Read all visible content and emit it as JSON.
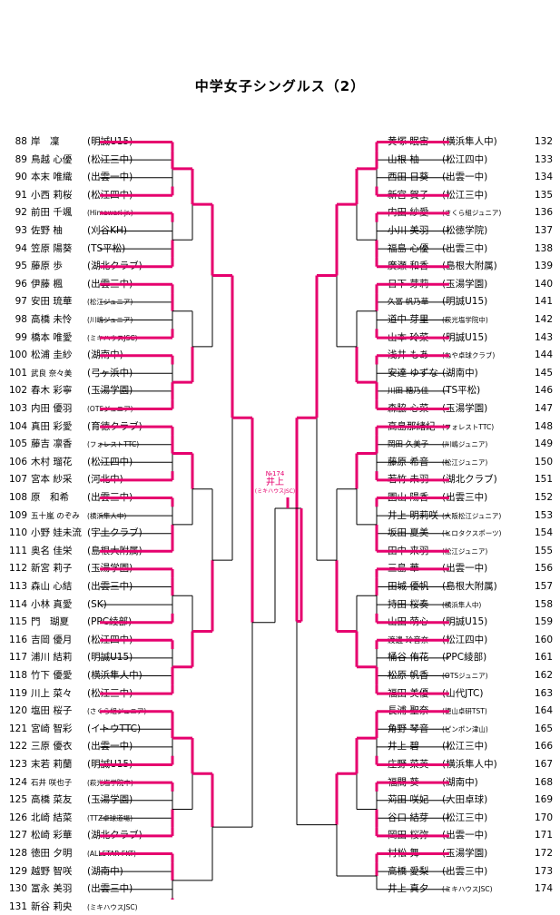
{
  "title": "中学女子シングルス（2）",
  "champion": {
    "label": "№174",
    "name": "井上",
    "club": "(ミキハウスJSC)"
  },
  "left": [
    {
      "no": "88",
      "name": "岸　凜",
      "club": "(明誠U15)"
    },
    {
      "no": "89",
      "name": "鳥越 心優",
      "club": "(松江三中)"
    },
    {
      "no": "90",
      "name": "本末 唯織",
      "club": "(出雲一中)"
    },
    {
      "no": "91",
      "name": "小西 莉桜",
      "club": "(松江四中)"
    },
    {
      "no": "92",
      "name": "前田 千颯",
      "club": "(Himawari jr.)",
      "small": true
    },
    {
      "no": "93",
      "name": "佐野 柚",
      "club": "(刈谷KH)"
    },
    {
      "no": "94",
      "name": "笠原 陽葵",
      "club": "(TS平松)"
    },
    {
      "no": "95",
      "name": "藤原 歩",
      "club": "(湖北クラブ)"
    },
    {
      "no": "96",
      "name": "伊藤 楓",
      "club": "(出雲三中)"
    },
    {
      "no": "97",
      "name": "安田 琉華",
      "club": "(松江ジュニア)",
      "small": true
    },
    {
      "no": "98",
      "name": "高橋 未怜",
      "club": "(川嶋ジュニア)",
      "small": true
    },
    {
      "no": "99",
      "name": "橋本 唯愛",
      "club": "(ミキハウスJSC)",
      "small": true
    },
    {
      "no": "100",
      "name": "松浦 圭紗",
      "club": "(湖南中)"
    },
    {
      "no": "101",
      "name": "武良 奈々美",
      "club": "(弓ヶ浜中)",
      "nameSmall": true
    },
    {
      "no": "102",
      "name": "春木 彩寧",
      "club": "(玉湯学園)"
    },
    {
      "no": "103",
      "name": "内田 優羽",
      "club": "(OTSジュニア)",
      "small": true
    },
    {
      "no": "104",
      "name": "真田 彩愛",
      "club": "(育徳クラブ)"
    },
    {
      "no": "105",
      "name": "藤吉 凛香",
      "club": "(フォレストTTC)",
      "small": true
    },
    {
      "no": "106",
      "name": "木村 瑠花",
      "club": "(松江四中)"
    },
    {
      "no": "107",
      "name": "宮本 紗采",
      "club": "(河北中)"
    },
    {
      "no": "108",
      "name": "原　和希",
      "club": "(出雲三中)"
    },
    {
      "no": "109",
      "name": "五十嵐 のぞみ",
      "club": "(横浜隼人中)",
      "nameSmall": true,
      "small": true
    },
    {
      "no": "110",
      "name": "小野 娃未流",
      "club": "(宇土クラブ)"
    },
    {
      "no": "111",
      "name": "奥名 佳栄",
      "club": "(島根大附属)"
    },
    {
      "no": "112",
      "name": "新宮 莉子",
      "club": "(玉湯学園)"
    },
    {
      "no": "113",
      "name": "森山 心結",
      "club": "(出雲三中)"
    },
    {
      "no": "114",
      "name": "小林 真愛",
      "club": "(SK)"
    },
    {
      "no": "115",
      "name": "門　瑚夏",
      "club": "(PPC綾部)"
    },
    {
      "no": "116",
      "name": "吉岡 優月",
      "club": "(松江四中)"
    },
    {
      "no": "117",
      "name": "浦川 結莉",
      "club": "(明誠U15)"
    },
    {
      "no": "118",
      "name": "竹下 優愛",
      "club": "(横浜隼人中)"
    },
    {
      "no": "119",
      "name": "川上 菜々",
      "club": "(松江三中)"
    },
    {
      "no": "120",
      "name": "塩田 桜子",
      "club": "(さくら組ジュニア)",
      "small": true
    },
    {
      "no": "121",
      "name": "宮崎 智彩",
      "club": "(イトウTTC)"
    },
    {
      "no": "122",
      "name": "三原 優衣",
      "club": "(出雲一中)"
    },
    {
      "no": "123",
      "name": "末若 莉蘭",
      "club": "(明誠U15)"
    },
    {
      "no": "124",
      "name": "石井 咲也子",
      "club": "(萩光塩学院中)",
      "nameSmall": true,
      "small": true
    },
    {
      "no": "125",
      "name": "高橋 菜友",
      "club": "(玉湯学園)"
    },
    {
      "no": "126",
      "name": "北崎 結菜",
      "club": "(TTZ卓球道場)",
      "small": true
    },
    {
      "no": "127",
      "name": "松崎 彩華",
      "club": "(湖北クラブ)"
    },
    {
      "no": "128",
      "name": "徳田 夕明",
      "club": "(ALLSTAR-FKT)",
      "small": true
    },
    {
      "no": "129",
      "name": "越野 智咲",
      "club": "(湖南中)"
    },
    {
      "no": "130",
      "name": "冨永 美羽",
      "club": "(出雲三中)"
    },
    {
      "no": "131",
      "name": "新谷 莉央",
      "club": "(ミキハウスJSC)",
      "small": true
    }
  ],
  "right": [
    {
      "no": "132",
      "name": "黄塚 眠宙",
      "club": "(横浜隼人中)"
    },
    {
      "no": "133",
      "name": "山根 柚",
      "club": "(松江四中)"
    },
    {
      "no": "134",
      "name": "西田 日葵",
      "club": "(出雲一中)"
    },
    {
      "no": "135",
      "name": "新宮 賀子",
      "club": "(松江三中)"
    },
    {
      "no": "136",
      "name": "内田 紗愛",
      "club": "(さくら組ジュニア)",
      "small": true
    },
    {
      "no": "137",
      "name": "小川 美羽",
      "club": "(松徳学院)"
    },
    {
      "no": "138",
      "name": "福島 心優",
      "club": "(出雲三中)"
    },
    {
      "no": "139",
      "name": "廣瀬 和香",
      "club": "(島根大附属)"
    },
    {
      "no": "140",
      "name": "日下 芽莉",
      "club": "(玉湯学園)"
    },
    {
      "no": "141",
      "name": "久冨 帆乃華",
      "club": "(明誠U15)",
      "nameSmall": true
    },
    {
      "no": "142",
      "name": "道中 芽里",
      "club": "(萩光塩学院中)",
      "small": true
    },
    {
      "no": "143",
      "name": "山本 玲菜",
      "club": "(明誠U15)"
    },
    {
      "no": "144",
      "name": "浅井 もあ",
      "club": "(ねや卓球クラブ)",
      "small": true
    },
    {
      "no": "145",
      "name": "安達 ゆずな",
      "club": "(湖南中)"
    },
    {
      "no": "146",
      "name": "川田 穂乃佳",
      "club": "(TS平松)",
      "nameSmall": true
    },
    {
      "no": "147",
      "name": "森脇 心菜",
      "club": "(玉湯学園)"
    },
    {
      "no": "148",
      "name": "高島那緒紀",
      "club": "(フォレストTTC)",
      "small": true
    },
    {
      "no": "149",
      "name": "岡田 久美子",
      "club": "(川嶋ジュニア)",
      "nameSmall": true,
      "small": true
    },
    {
      "no": "150",
      "name": "藤原 希音",
      "club": "(松江ジュニア)",
      "small": true
    },
    {
      "no": "151",
      "name": "若竹 未羽",
      "club": "(湖北クラブ)"
    },
    {
      "no": "152",
      "name": "園山 陽香",
      "club": "(出雲三中)"
    },
    {
      "no": "153",
      "name": "井上 明莉咲",
      "club": "(大阪松江ジュニア)",
      "small": true
    },
    {
      "no": "154",
      "name": "坂田 夏美",
      "club": "(ヒロタクスポーツ)",
      "small": true
    },
    {
      "no": "155",
      "name": "田中 来羽",
      "club": "(松江ジュニア)",
      "small": true
    },
    {
      "no": "156",
      "name": "三島 華",
      "club": "(出雲一中)"
    },
    {
      "no": "157",
      "name": "田城 優帆",
      "club": "(島根大附属)"
    },
    {
      "no": "158",
      "name": "持田 桜奏",
      "club": "(横浜隼人中)",
      "small": true
    },
    {
      "no": "159",
      "name": "山田 萌心",
      "club": "(明誠U15)"
    },
    {
      "no": "160",
      "name": "渡邊 玲音奈",
      "club": "(松江四中)",
      "nameSmall": true
    },
    {
      "no": "161",
      "name": "桶谷 侑花",
      "club": "(PPC綾部)"
    },
    {
      "no": "162",
      "name": "松原 帆香",
      "club": "(OTSジュニア)",
      "small": true
    },
    {
      "no": "163",
      "name": "福田 美優",
      "club": "(山代JTC)"
    },
    {
      "no": "164",
      "name": "長浦 聖奈",
      "club": "(徳山卓研TST)",
      "small": true
    },
    {
      "no": "165",
      "name": "角野 琴音",
      "club": "(ピンポン津山)",
      "small": true
    },
    {
      "no": "166",
      "name": "井上 碧",
      "club": "(松江三中)"
    },
    {
      "no": "167",
      "name": "庄野 菜英",
      "club": "(横浜隼人中)"
    },
    {
      "no": "168",
      "name": "福間 葵",
      "club": "(湖南中)"
    },
    {
      "no": "169",
      "name": "苅田 咲妃",
      "club": "(大田卓球)"
    },
    {
      "no": "170",
      "name": "谷口 結芽",
      "club": "(松江三中)"
    },
    {
      "no": "171",
      "name": "岡田 桜弥",
      "club": "(出雲一中)"
    },
    {
      "no": "172",
      "name": "村松 舞",
      "club": "(玉湯学園)"
    },
    {
      "no": "173",
      "name": "高橋 愛梨",
      "club": "(出雲三中)"
    },
    {
      "no": "174",
      "name": "井上 真夕",
      "club": "(ミキハウスJSC)",
      "small": true
    }
  ]
}
